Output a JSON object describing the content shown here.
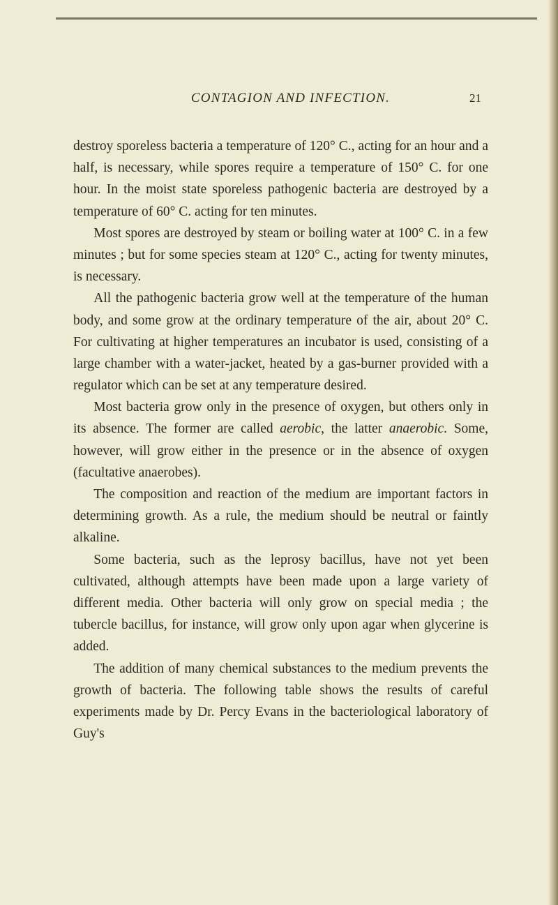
{
  "header": {
    "running_title": "CONTAGION AND INFECTION.",
    "page_number": "21"
  },
  "paragraphs": {
    "p1": "destroy sporeless bacteria a temperature of 120° C., acting for an hour and a half, is necessary, while spores require a temperature of 150° C. for one hour. In the moist state sporeless pathogenic bacteria are destroyed by a temperature of 60° C. acting for ten minutes.",
    "p2": "Most spores are destroyed by steam or boiling water at 100° C. in a few minutes ; but for some species steam at 120° C., acting for twenty minutes, is necessary.",
    "p3": "All the pathogenic bacteria grow well at the temperature of the human body, and some grow at the ordinary temperature of the air, about 20° C. For cultivating at higher temperatures an incubator is used, consisting of a large chamber with a water-jacket, heated by a gas-burner provided with a regulator which can be set at any temperature desired.",
    "p4_a": "Most bacteria grow only in the presence of oxygen, but others only in its absence. The former are called ",
    "p4_aerobic": "aerobic",
    "p4_b": ", the latter ",
    "p4_anaerobic": "anaerobic",
    "p4_c": ". Some, however, will grow either in the presence or in the absence of oxygen (facultative anaerobes).",
    "p5": "The composition and reaction of the medium are important factors in determining growth. As a rule, the medium should be neutral or faintly alkaline.",
    "p6": "Some bacteria, such as the leprosy bacillus, have not yet been cultivated, although attempts have been made upon a large variety of different media. Other bacteria will only grow on special media ; the tubercle bacillus, for instance, will grow only upon agar when glycerine is added.",
    "p7": "The addition of many chemical substances to the medium prevents the growth of bacteria. The following table shows the results of careful experiments made by Dr. Percy Evans in the bacteriological laboratory of Guy's"
  },
  "colors": {
    "background": "#f0ebd4",
    "text": "#2a2a22"
  }
}
